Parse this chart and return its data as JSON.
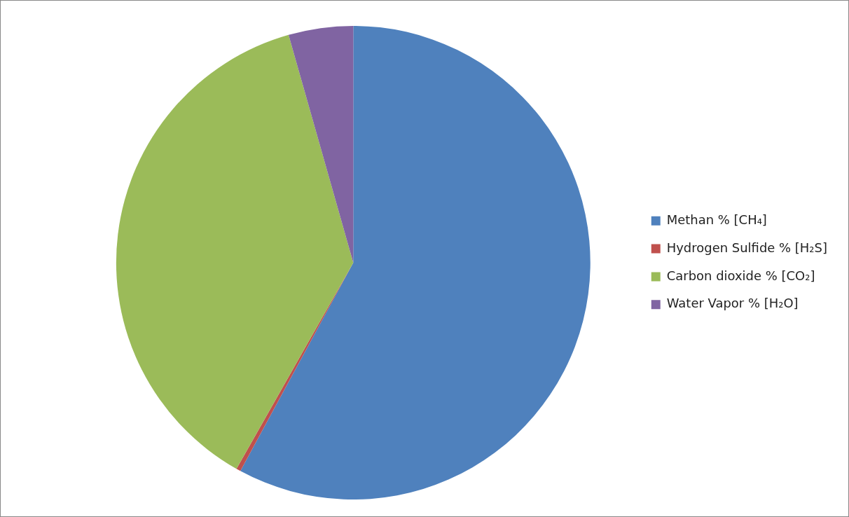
{
  "chart_data": {
    "type": "pie",
    "categories": [
      "Methan % [CH₄]",
      "Hydrogen Sulfide % [H₂S]",
      "Carbon dioxide % [CO₂]",
      "Water Vapor % [H₂O]"
    ],
    "values": [
      57.9,
      0.3,
      37.4,
      4.4
    ],
    "colors": [
      "#4f81bd",
      "#c0504d",
      "#9bbb59",
      "#8064a2"
    ],
    "legend": "right"
  }
}
